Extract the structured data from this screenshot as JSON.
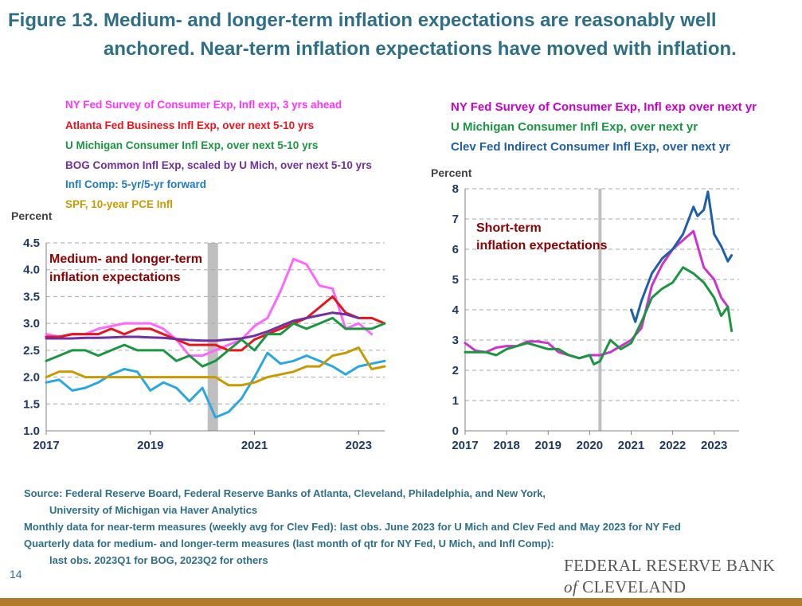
{
  "title": {
    "line1": "Figure 13. Medium- and longer-term inflation expectations are reasonably well",
    "line2": "anchored.  Near-term inflation expectations have moved with inflation."
  },
  "source": {
    "line1": "Source: Federal Reserve Board, Federal Reserve Banks of Atlanta, Cleveland, Philadelphia, and New York,",
    "line2": "University of Michigan via Haver Analytics",
    "line3": "Monthly data for near-term measures (weekly avg for Clev Fed): last obs. June 2023 for U Mich and Clev Fed and May 2023 for NY Fed",
    "line4": "Quarterly data for medium- and longer-term measures (last month of qtr for NY Fed, U Mich, and Infl Comp):",
    "line5": "last obs. 2023Q1 for BOG, 2023Q2 for others"
  },
  "page_number": "14",
  "brand": {
    "line1": "FEDERAL RESERVE BANK",
    "of": "of",
    "line2": "CLEVELAND"
  },
  "colors": {
    "title": "#2e6f88",
    "magenta": "#cc33cc",
    "pink": "#ff66ff",
    "red": "#e8141c",
    "green": "#1a9641",
    "purple": "#7030a0",
    "blue": "#1f7ac0",
    "lightblue": "#2aa7e0",
    "gold": "#c79a00",
    "darkblue": "#1f5fa8",
    "recession": "#bfbfbf",
    "annot": "#8b0000"
  },
  "chart_data": [
    {
      "type": "line",
      "ylabel": "Percent",
      "ylim": [
        1.0,
        4.5
      ],
      "yticks": [
        "1.0",
        "1.5",
        "2.0",
        "2.5",
        "3.0",
        "3.5",
        "4.0",
        "4.5"
      ],
      "xticks": [
        "2017",
        "2019",
        "2021",
        "2023"
      ],
      "xlim": [
        2017.0,
        2023.5
      ],
      "grid": true,
      "annotation": [
        "Medium- and longer-term",
        "inflation expectations"
      ],
      "recession": [
        2020.1,
        2020.3
      ],
      "series": [
        {
          "name": "NY Fed Survey of Consumer Exp, Infl exp, 3 yrs ahead",
          "color": "#ff66ff",
          "x": [
            2017.0,
            2017.25,
            2017.5,
            2017.75,
            2018.0,
            2018.25,
            2018.5,
            2018.75,
            2019.0,
            2019.25,
            2019.5,
            2019.75,
            2020.0,
            2020.25,
            2020.5,
            2020.75,
            2021.0,
            2021.25,
            2021.5,
            2021.75,
            2022.0,
            2022.25,
            2022.5,
            2022.75,
            2023.0,
            2023.25
          ],
          "y": [
            2.8,
            2.75,
            2.8,
            2.8,
            2.9,
            2.95,
            3.0,
            3.0,
            3.0,
            2.9,
            2.7,
            2.4,
            2.4,
            2.5,
            2.6,
            2.7,
            2.95,
            3.1,
            3.6,
            4.2,
            4.1,
            3.7,
            3.65,
            2.9,
            3.0,
            2.8
          ]
        },
        {
          "name": "Atlanta Fed Business Infl Exp, over next 5-10 yrs",
          "color": "#e8141c",
          "x": [
            2017.0,
            2017.25,
            2017.5,
            2017.75,
            2018.0,
            2018.25,
            2018.5,
            2018.75,
            2019.0,
            2019.25,
            2019.5,
            2019.75,
            2020.0,
            2020.25,
            2020.5,
            2020.75,
            2021.0,
            2021.25,
            2021.5,
            2021.75,
            2022.0,
            2022.25,
            2022.5,
            2022.75,
            2023.0,
            2023.25,
            2023.5
          ],
          "y": [
            2.75,
            2.75,
            2.8,
            2.8,
            2.8,
            2.9,
            2.8,
            2.9,
            2.9,
            2.8,
            2.7,
            2.6,
            2.6,
            2.6,
            2.5,
            2.5,
            2.7,
            2.8,
            2.9,
            3.0,
            3.1,
            3.3,
            3.5,
            3.2,
            3.1,
            3.1,
            3.0
          ]
        },
        {
          "name": "U Michigan Consumer Infl Exp, over next 5-10 yrs",
          "color": "#1a9641",
          "x": [
            2017.0,
            2017.25,
            2017.5,
            2017.75,
            2018.0,
            2018.25,
            2018.5,
            2018.75,
            2019.0,
            2019.25,
            2019.5,
            2019.75,
            2020.0,
            2020.25,
            2020.5,
            2020.75,
            2021.0,
            2021.25,
            2021.5,
            2021.75,
            2022.0,
            2022.25,
            2022.5,
            2022.75,
            2023.0,
            2023.25,
            2023.5
          ],
          "y": [
            2.3,
            2.4,
            2.5,
            2.5,
            2.4,
            2.5,
            2.6,
            2.5,
            2.5,
            2.5,
            2.3,
            2.4,
            2.2,
            2.3,
            2.5,
            2.7,
            2.5,
            2.8,
            2.8,
            3.0,
            2.9,
            3.0,
            3.1,
            2.9,
            2.9,
            2.9,
            3.0
          ]
        },
        {
          "name": "BOG Common Infl Exp, scaled by U Mich, over next 5-10 yrs",
          "color": "#7030a0",
          "x": [
            2017.0,
            2017.25,
            2017.5,
            2017.75,
            2018.0,
            2018.25,
            2018.5,
            2018.75,
            2019.0,
            2019.25,
            2019.5,
            2019.75,
            2020.0,
            2020.25,
            2020.5,
            2020.75,
            2021.0,
            2021.25,
            2021.5,
            2021.75,
            2022.0,
            2022.25,
            2022.5,
            2022.75,
            2023.0
          ],
          "y": [
            2.72,
            2.72,
            2.72,
            2.73,
            2.73,
            2.74,
            2.75,
            2.75,
            2.74,
            2.73,
            2.71,
            2.69,
            2.68,
            2.68,
            2.7,
            2.72,
            2.77,
            2.85,
            2.95,
            3.05,
            3.1,
            3.15,
            3.2,
            3.17,
            3.1
          ]
        },
        {
          "name": "Infl Comp: 5-yr/5-yr forward",
          "color": "#2aa7e0",
          "x": [
            2017.0,
            2017.25,
            2017.5,
            2017.75,
            2018.0,
            2018.25,
            2018.5,
            2018.75,
            2019.0,
            2019.25,
            2019.5,
            2019.75,
            2020.0,
            2020.25,
            2020.5,
            2020.75,
            2021.0,
            2021.25,
            2021.5,
            2021.75,
            2022.0,
            2022.25,
            2022.5,
            2022.75,
            2023.0,
            2023.25,
            2023.5
          ],
          "y": [
            1.9,
            1.95,
            1.75,
            1.8,
            1.9,
            2.05,
            2.15,
            2.1,
            1.75,
            1.9,
            1.8,
            1.55,
            1.8,
            1.25,
            1.35,
            1.6,
            2.0,
            2.45,
            2.25,
            2.3,
            2.4,
            2.3,
            2.2,
            2.05,
            2.2,
            2.25,
            2.3
          ]
        },
        {
          "name": "SPF, 10-year PCE Infl",
          "color": "#c79a00",
          "x": [
            2017.0,
            2017.25,
            2017.5,
            2017.75,
            2018.0,
            2018.25,
            2018.5,
            2018.75,
            2019.0,
            2019.25,
            2019.5,
            2019.75,
            2020.0,
            2020.25,
            2020.5,
            2020.75,
            2021.0,
            2021.25,
            2021.5,
            2021.75,
            2022.0,
            2022.25,
            2022.5,
            2022.75,
            2023.0,
            2023.25,
            2023.5
          ],
          "y": [
            2.0,
            2.1,
            2.1,
            2.0,
            2.0,
            2.0,
            2.0,
            2.0,
            2.0,
            2.0,
            2.0,
            2.0,
            2.0,
            2.0,
            1.85,
            1.85,
            1.9,
            2.0,
            2.05,
            2.1,
            2.2,
            2.2,
            2.4,
            2.45,
            2.55,
            2.15,
            2.2
          ]
        }
      ]
    },
    {
      "type": "line",
      "ylabel": "Percent",
      "ylim": [
        0,
        8
      ],
      "yticks": [
        "0",
        "1",
        "2",
        "3",
        "4",
        "5",
        "6",
        "7",
        "8"
      ],
      "xticks": [
        "2017",
        "2018",
        "2019",
        "2020",
        "2021",
        "2022",
        "2023"
      ],
      "xlim": [
        2017.0,
        2023.6
      ],
      "grid": true,
      "annotation": [
        "Short-term",
        "inflation expectations"
      ],
      "recession": [
        2020.25,
        2020.25
      ],
      "series": [
        {
          "name": "NY Fed Survey of Consumer Exp, Infl exp over next yr",
          "color": "#cc33cc",
          "x": [
            2017.0,
            2017.25,
            2017.5,
            2017.75,
            2018.0,
            2018.25,
            2018.5,
            2018.75,
            2019.0,
            2019.25,
            2019.5,
            2019.75,
            2020.0,
            2020.25,
            2020.5,
            2020.75,
            2021.0,
            2021.25,
            2021.5,
            2021.75,
            2022.0,
            2022.25,
            2022.5,
            2022.75,
            2023.0,
            2023.17,
            2023.33
          ],
          "y": [
            2.9,
            2.65,
            2.6,
            2.75,
            2.8,
            2.8,
            2.95,
            2.95,
            2.9,
            2.6,
            2.5,
            2.4,
            2.5,
            2.5,
            2.6,
            2.8,
            3.0,
            3.4,
            4.8,
            5.5,
            6.0,
            6.3,
            6.6,
            5.4,
            5.0,
            4.4,
            4.1
          ]
        },
        {
          "name": "U Michigan Consumer Infl Exp, over next yr",
          "color": "#1a9641",
          "x": [
            2017.0,
            2017.25,
            2017.5,
            2017.75,
            2018.0,
            2018.25,
            2018.5,
            2018.75,
            2019.0,
            2019.25,
            2019.5,
            2019.75,
            2020.0,
            2020.1,
            2020.25,
            2020.5,
            2020.75,
            2021.0,
            2021.25,
            2021.5,
            2021.75,
            2022.0,
            2022.25,
            2022.5,
            2022.75,
            2023.0,
            2023.17,
            2023.33,
            2023.42
          ],
          "y": [
            2.6,
            2.6,
            2.6,
            2.5,
            2.7,
            2.8,
            2.9,
            2.8,
            2.7,
            2.7,
            2.5,
            2.4,
            2.5,
            2.2,
            2.3,
            3.0,
            2.7,
            2.9,
            3.6,
            4.4,
            4.7,
            4.9,
            5.4,
            5.2,
            4.9,
            4.4,
            3.8,
            4.1,
            3.3
          ]
        },
        {
          "name": "Clev Fed Indirect Consumer Infl Exp, over next yr",
          "color": "#1f5fa8",
          "x": [
            2021.0,
            2021.1,
            2021.25,
            2021.5,
            2021.75,
            2022.0,
            2022.25,
            2022.5,
            2022.6,
            2022.75,
            2022.85,
            2023.0,
            2023.17,
            2023.33,
            2023.42
          ],
          "y": [
            4.0,
            3.6,
            4.3,
            5.2,
            5.7,
            6.0,
            6.5,
            7.4,
            7.1,
            7.3,
            7.9,
            6.5,
            6.1,
            5.6,
            5.8
          ]
        }
      ]
    }
  ]
}
